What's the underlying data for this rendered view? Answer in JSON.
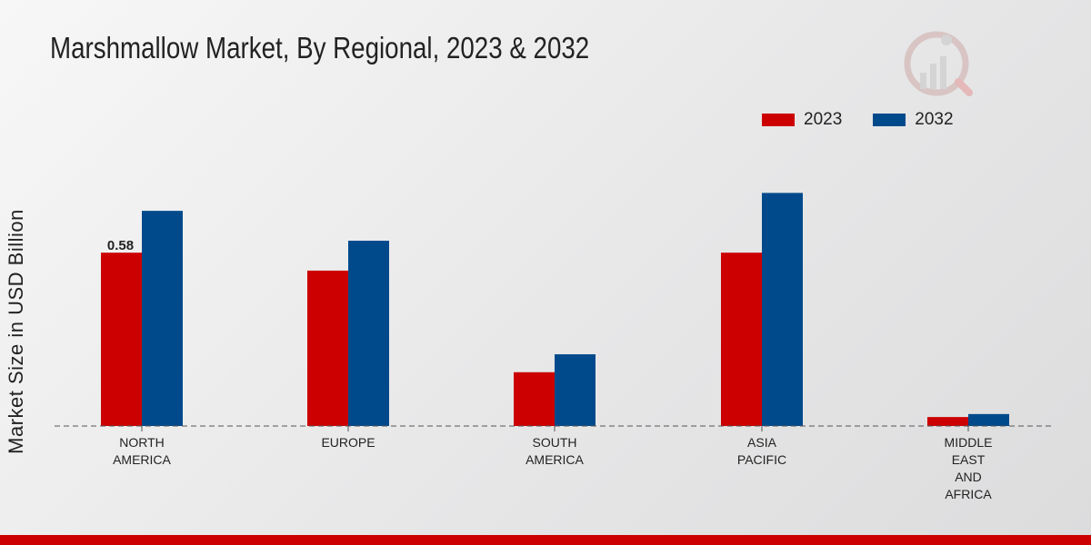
{
  "title": "Marshmallow Market, By Regional, 2023 & 2032",
  "colors": {
    "series_2023": "#cc0000",
    "series_2032": "#004a8c",
    "bottom_bar": "#cc0000"
  },
  "chart_data": {
    "type": "bar",
    "title": "Marshmallow Market, By Regional, 2023 & 2032",
    "xlabel": "",
    "ylabel": "Market Size in USD Billion",
    "ylim": [
      0,
      1.0
    ],
    "categories": [
      [
        "NORTH",
        "AMERICA"
      ],
      [
        "EUROPE"
      ],
      [
        "SOUTH",
        "AMERICA"
      ],
      [
        "ASIA",
        "PACIFIC"
      ],
      [
        "MIDDLE",
        "EAST",
        "AND",
        "AFRICA"
      ]
    ],
    "series": [
      {
        "name": "2023",
        "color": "#cc0000",
        "values": [
          0.58,
          0.52,
          0.18,
          0.58,
          0.03
        ]
      },
      {
        "name": "2032",
        "color": "#004a8c",
        "values": [
          0.72,
          0.62,
          0.24,
          0.78,
          0.04
        ]
      }
    ],
    "data_labels": [
      {
        "series": 0,
        "index": 0,
        "text": "0.58"
      }
    ],
    "legend": {
      "position": "top-right",
      "items": [
        "2023",
        "2032"
      ]
    },
    "grid": false,
    "baseline": "dashed"
  }
}
